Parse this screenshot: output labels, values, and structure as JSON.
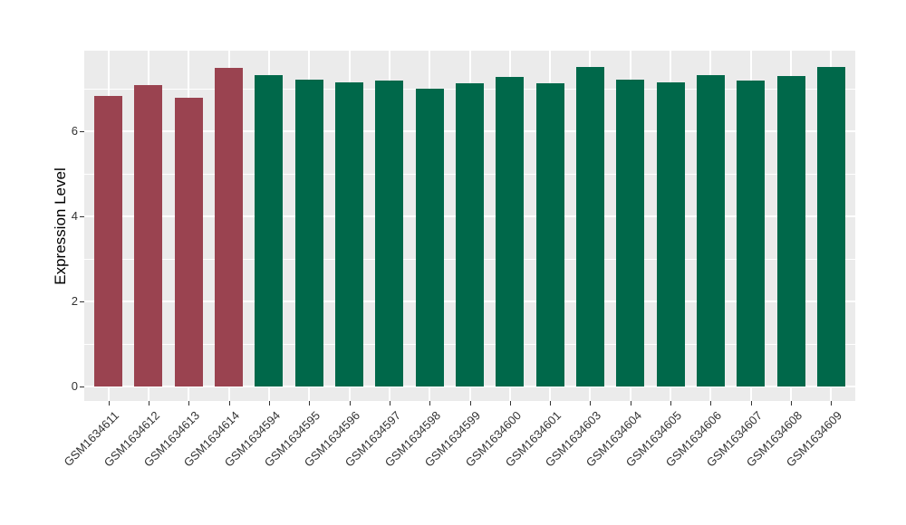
{
  "chart_data": {
    "type": "bar",
    "ylabel": "Expression Level",
    "xlabel": "",
    "categories": [
      "GSM1634611",
      "GSM1634612",
      "GSM1634613",
      "GSM1634614",
      "GSM1634594",
      "GSM1634595",
      "GSM1634596",
      "GSM1634597",
      "GSM1634598",
      "GSM1634599",
      "GSM1634600",
      "GSM1634601",
      "GSM1634603",
      "GSM1634604",
      "GSM1634605",
      "GSM1634606",
      "GSM1634607",
      "GSM1634608",
      "GSM1634609"
    ],
    "values": [
      6.83,
      7.1,
      6.79,
      7.49,
      7.33,
      7.22,
      7.16,
      7.2,
      7.01,
      7.13,
      7.29,
      7.14,
      7.51,
      7.21,
      7.16,
      7.33,
      7.19,
      7.3,
      7.51
    ],
    "bar_colors": [
      "#9A4350",
      "#9A4350",
      "#9A4350",
      "#9A4350",
      "#00684A",
      "#00684A",
      "#00684A",
      "#00684A",
      "#00684A",
      "#00684A",
      "#00684A",
      "#00684A",
      "#00684A",
      "#00684A",
      "#00684A",
      "#00684A",
      "#00684A",
      "#00684A",
      "#00684A"
    ],
    "group_colors": {
      "maroon": "#9A4350",
      "green": "#00684A"
    },
    "ytick_labels": [
      "0",
      "2",
      "4",
      "6"
    ],
    "ytick_values": [
      0,
      2,
      4,
      6
    ],
    "ytick_minor_values": [
      1,
      3,
      5,
      7
    ],
    "ylim": [
      -0.35,
      7.9
    ],
    "grid": true,
    "legend_position": "none",
    "panel_background": "#EBEBEB",
    "grid_color": "#FFFFFF",
    "axis_text_color": "#333333"
  }
}
